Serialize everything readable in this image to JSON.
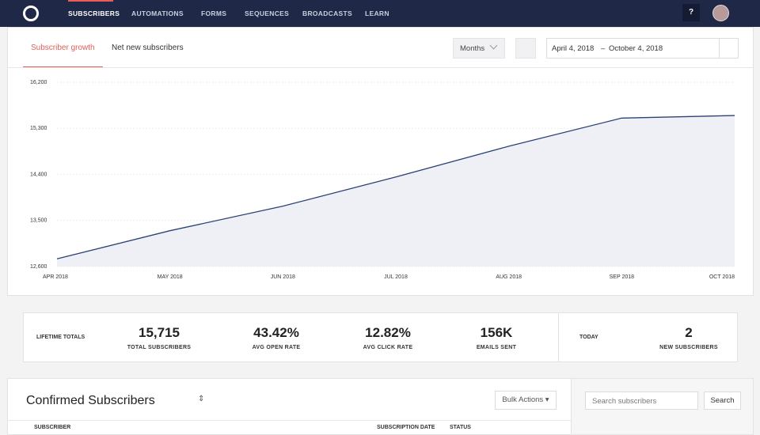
{
  "nav": {
    "items": [
      "SUBSCRIBERS",
      "AUTOMATIONS",
      "FORMS",
      "SEQUENCES",
      "BROADCASTS",
      "LEARN"
    ],
    "help": "?"
  },
  "toolbar": {
    "tabs": [
      "Subscriber growth",
      "Net new subscribers"
    ],
    "period": "Months",
    "date_start": "April 4, 2018",
    "date_sep": "–",
    "date_end": "October 4, 2018"
  },
  "chart_data": {
    "type": "line",
    "categories": [
      "APR 2018",
      "MAY 2018",
      "JUN 2018",
      "JUL 2018",
      "AUG 2018",
      "SEP 2018",
      "OCT 2018"
    ],
    "values": [
      12750,
      13300,
      13780,
      14350,
      14950,
      15500,
      15550
    ],
    "color": "#2c4274",
    "area_color": "#eef0f6",
    "ylim": [
      12600,
      16200
    ],
    "yticks": [
      {
        "value": 12600,
        "label": "12,600"
      },
      {
        "value": 13500,
        "label": "13,500"
      },
      {
        "value": 14400,
        "label": "14,400"
      },
      {
        "value": 15300,
        "label": "15,300"
      },
      {
        "value": 16200,
        "label": "16,200"
      }
    ],
    "grid": true
  },
  "stats": {
    "lifetime_label": "LIFETIME TOTALS",
    "items": [
      {
        "value": "15,715",
        "label": "TOTAL SUBSCRIBERS"
      },
      {
        "value": "43.42%",
        "label": "AVG OPEN RATE"
      },
      {
        "value": "12.82%",
        "label": "AVG CLICK RATE"
      },
      {
        "value": "156K",
        "label": "EMAILS SENT"
      }
    ],
    "today_label": "TODAY",
    "today": {
      "value": "2",
      "label": "NEW SUBSCRIBERS"
    }
  },
  "list": {
    "title": "Confirmed Subscribers",
    "bulk": "Bulk Actions",
    "columns": [
      "SUBSCRIBER",
      "SUBSCRIPTION DATE",
      "STATUS"
    ],
    "search_placeholder": "Search subscribers",
    "search_button": "Search"
  }
}
